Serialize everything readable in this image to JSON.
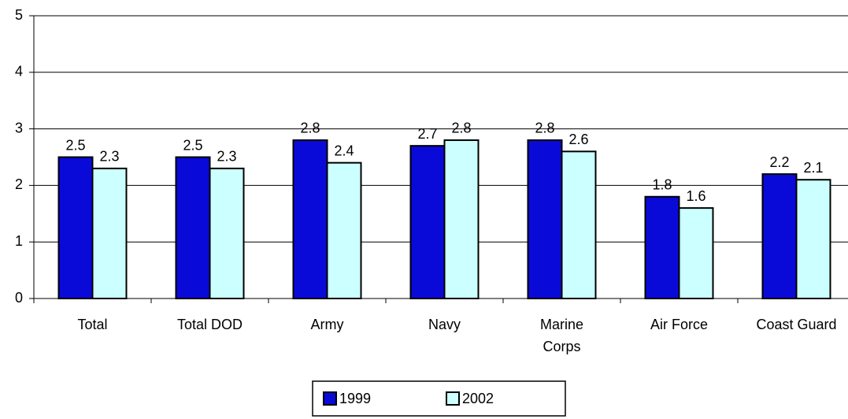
{
  "chart_data": {
    "type": "bar",
    "categories": [
      "Total",
      "Total DOD",
      "Army",
      "Navy",
      "Marine Corps",
      "Air Force",
      "Coast Guard"
    ],
    "series": [
      {
        "name": "1999",
        "color": "#0a0ad8",
        "values": [
          2.5,
          2.5,
          2.8,
          2.7,
          2.8,
          1.8,
          2.2
        ]
      },
      {
        "name": "2002",
        "color": "#ccffff",
        "values": [
          2.3,
          2.3,
          2.4,
          2.8,
          2.6,
          1.6,
          2.1
        ]
      }
    ],
    "ylim": [
      0,
      5
    ],
    "yticks": [
      0,
      1,
      2,
      3,
      4,
      5
    ],
    "grid": true,
    "legend": "bottom"
  }
}
